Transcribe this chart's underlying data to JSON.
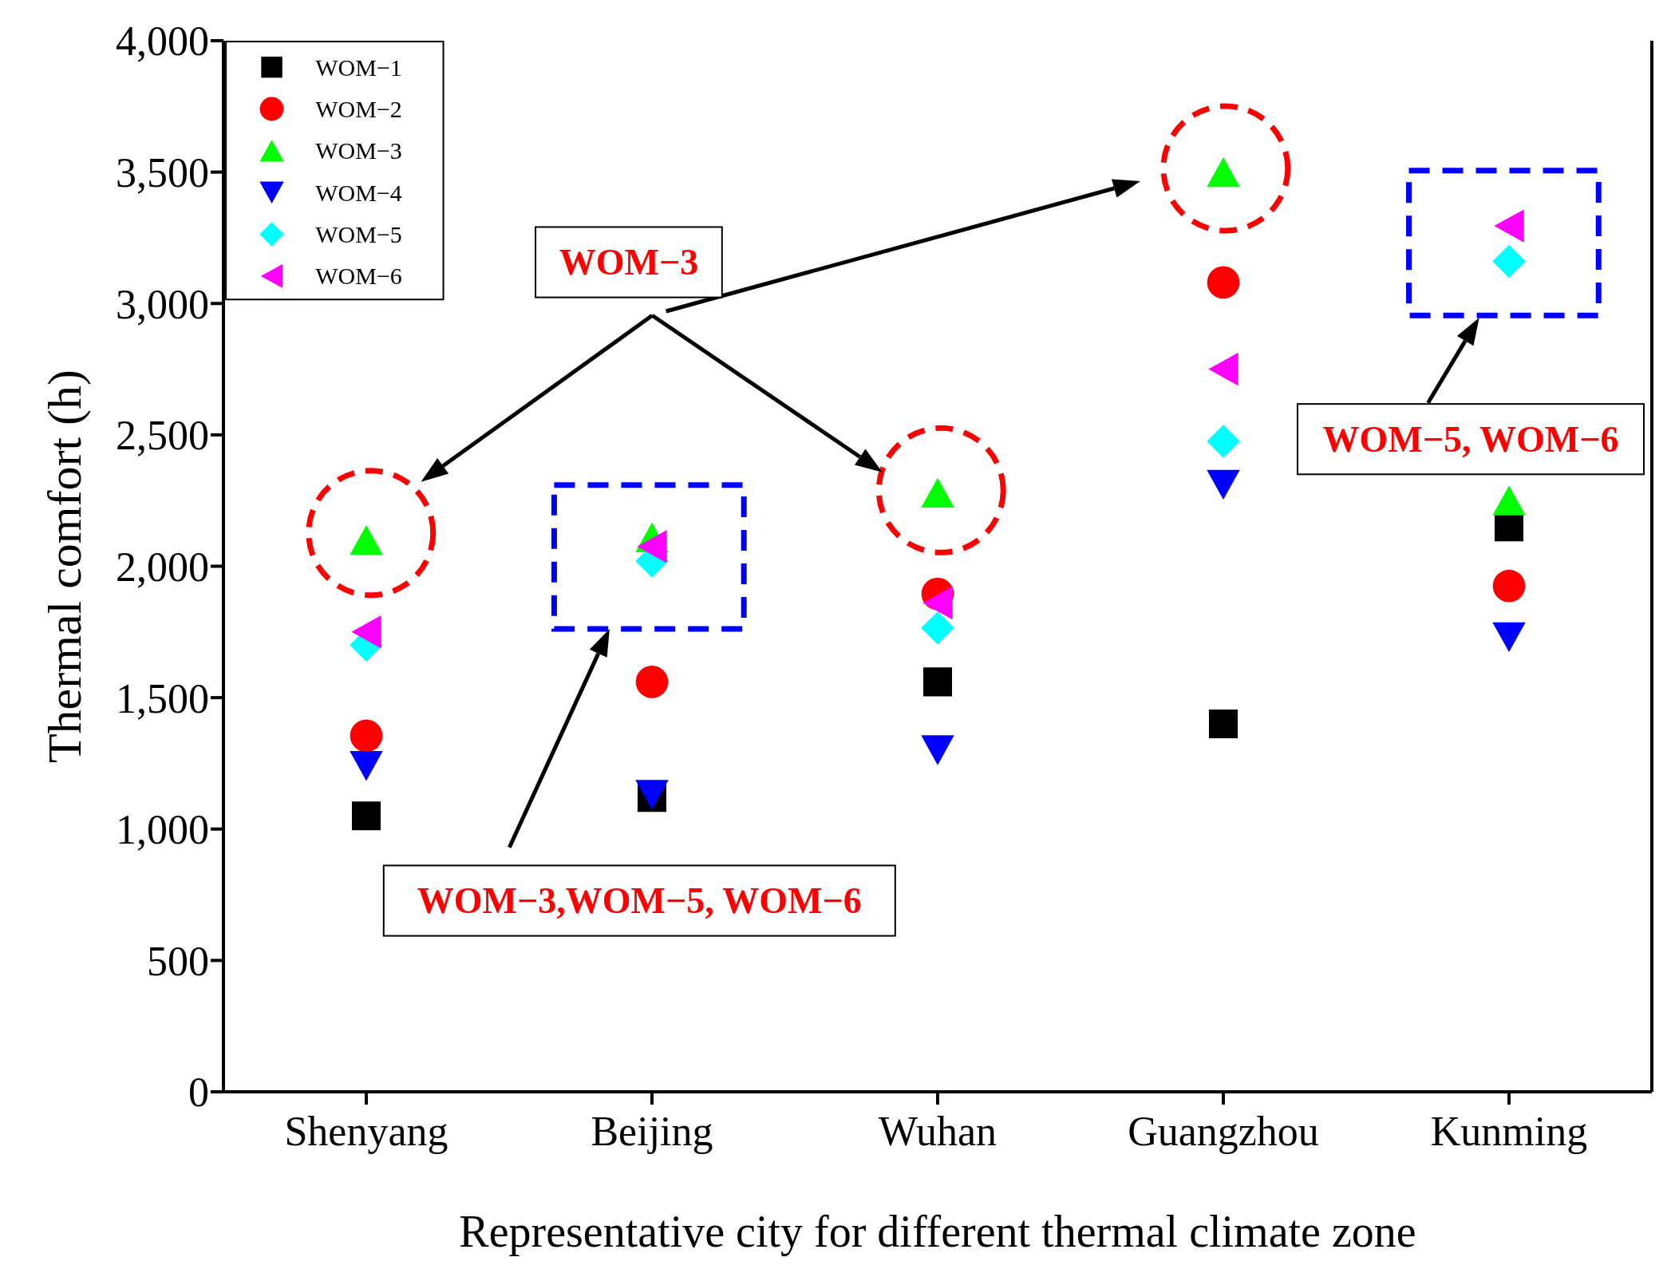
{
  "chart_data": {
    "type": "scatter",
    "xlabel": "Representative city for different thermal climate zone",
    "ylabel": "Thermal comfort (h)",
    "categories": [
      "Shenyang",
      "Beijing",
      "Wuhan",
      "Guangzhou",
      "Kunming"
    ],
    "ylim": [
      0,
      4000
    ],
    "yticks": [
      0,
      500,
      {
        "value": 1000,
        "label": "1,000"
      },
      {
        "value": 1500,
        "label": "1,500"
      },
      {
        "value": 2000,
        "label": "2,000"
      },
      {
        "value": 2500,
        "label": "2,500"
      },
      {
        "value": 3000,
        "label": "3,000"
      },
      {
        "value": 3500,
        "label": "3,500"
      },
      {
        "value": 4000,
        "label": "4,000"
      }
    ],
    "legend": "top left",
    "series": [
      {
        "name": "WOM−1",
        "color": "#000000",
        "marker": "square",
        "values": [
          1050,
          1120,
          1560,
          1400,
          2150
        ]
      },
      {
        "name": "WOM−2",
        "color": "#ff0000",
        "marker": "circle",
        "values": [
          1355,
          1560,
          1895,
          3080,
          1925
        ]
      },
      {
        "name": "WOM−3",
        "color": "#00ff00",
        "marker": "triangle",
        "values": [
          2100,
          2110,
          2280,
          3500,
          2250
        ]
      },
      {
        "name": "WOM−4",
        "color": "#0000ff",
        "marker": "triangle",
        "values": [
          1240,
          1130,
          1300,
          2310,
          1730
        ]
      },
      {
        "name": "WOM−5",
        "color": "#00ffff",
        "marker": "diamond",
        "values": [
          1700,
          2020,
          1765,
          2475,
          3160
        ]
      },
      {
        "name": "WOM−6",
        "color": "#ff00ff",
        "marker": "triangle",
        "values": [
          1750,
          2075,
          1860,
          2750,
          3295
        ]
      }
    ],
    "annotations": [
      "WOM−3",
      "WOM−3,WOM−5, WOM−6",
      "WOM−5, WOM−6"
    ]
  }
}
